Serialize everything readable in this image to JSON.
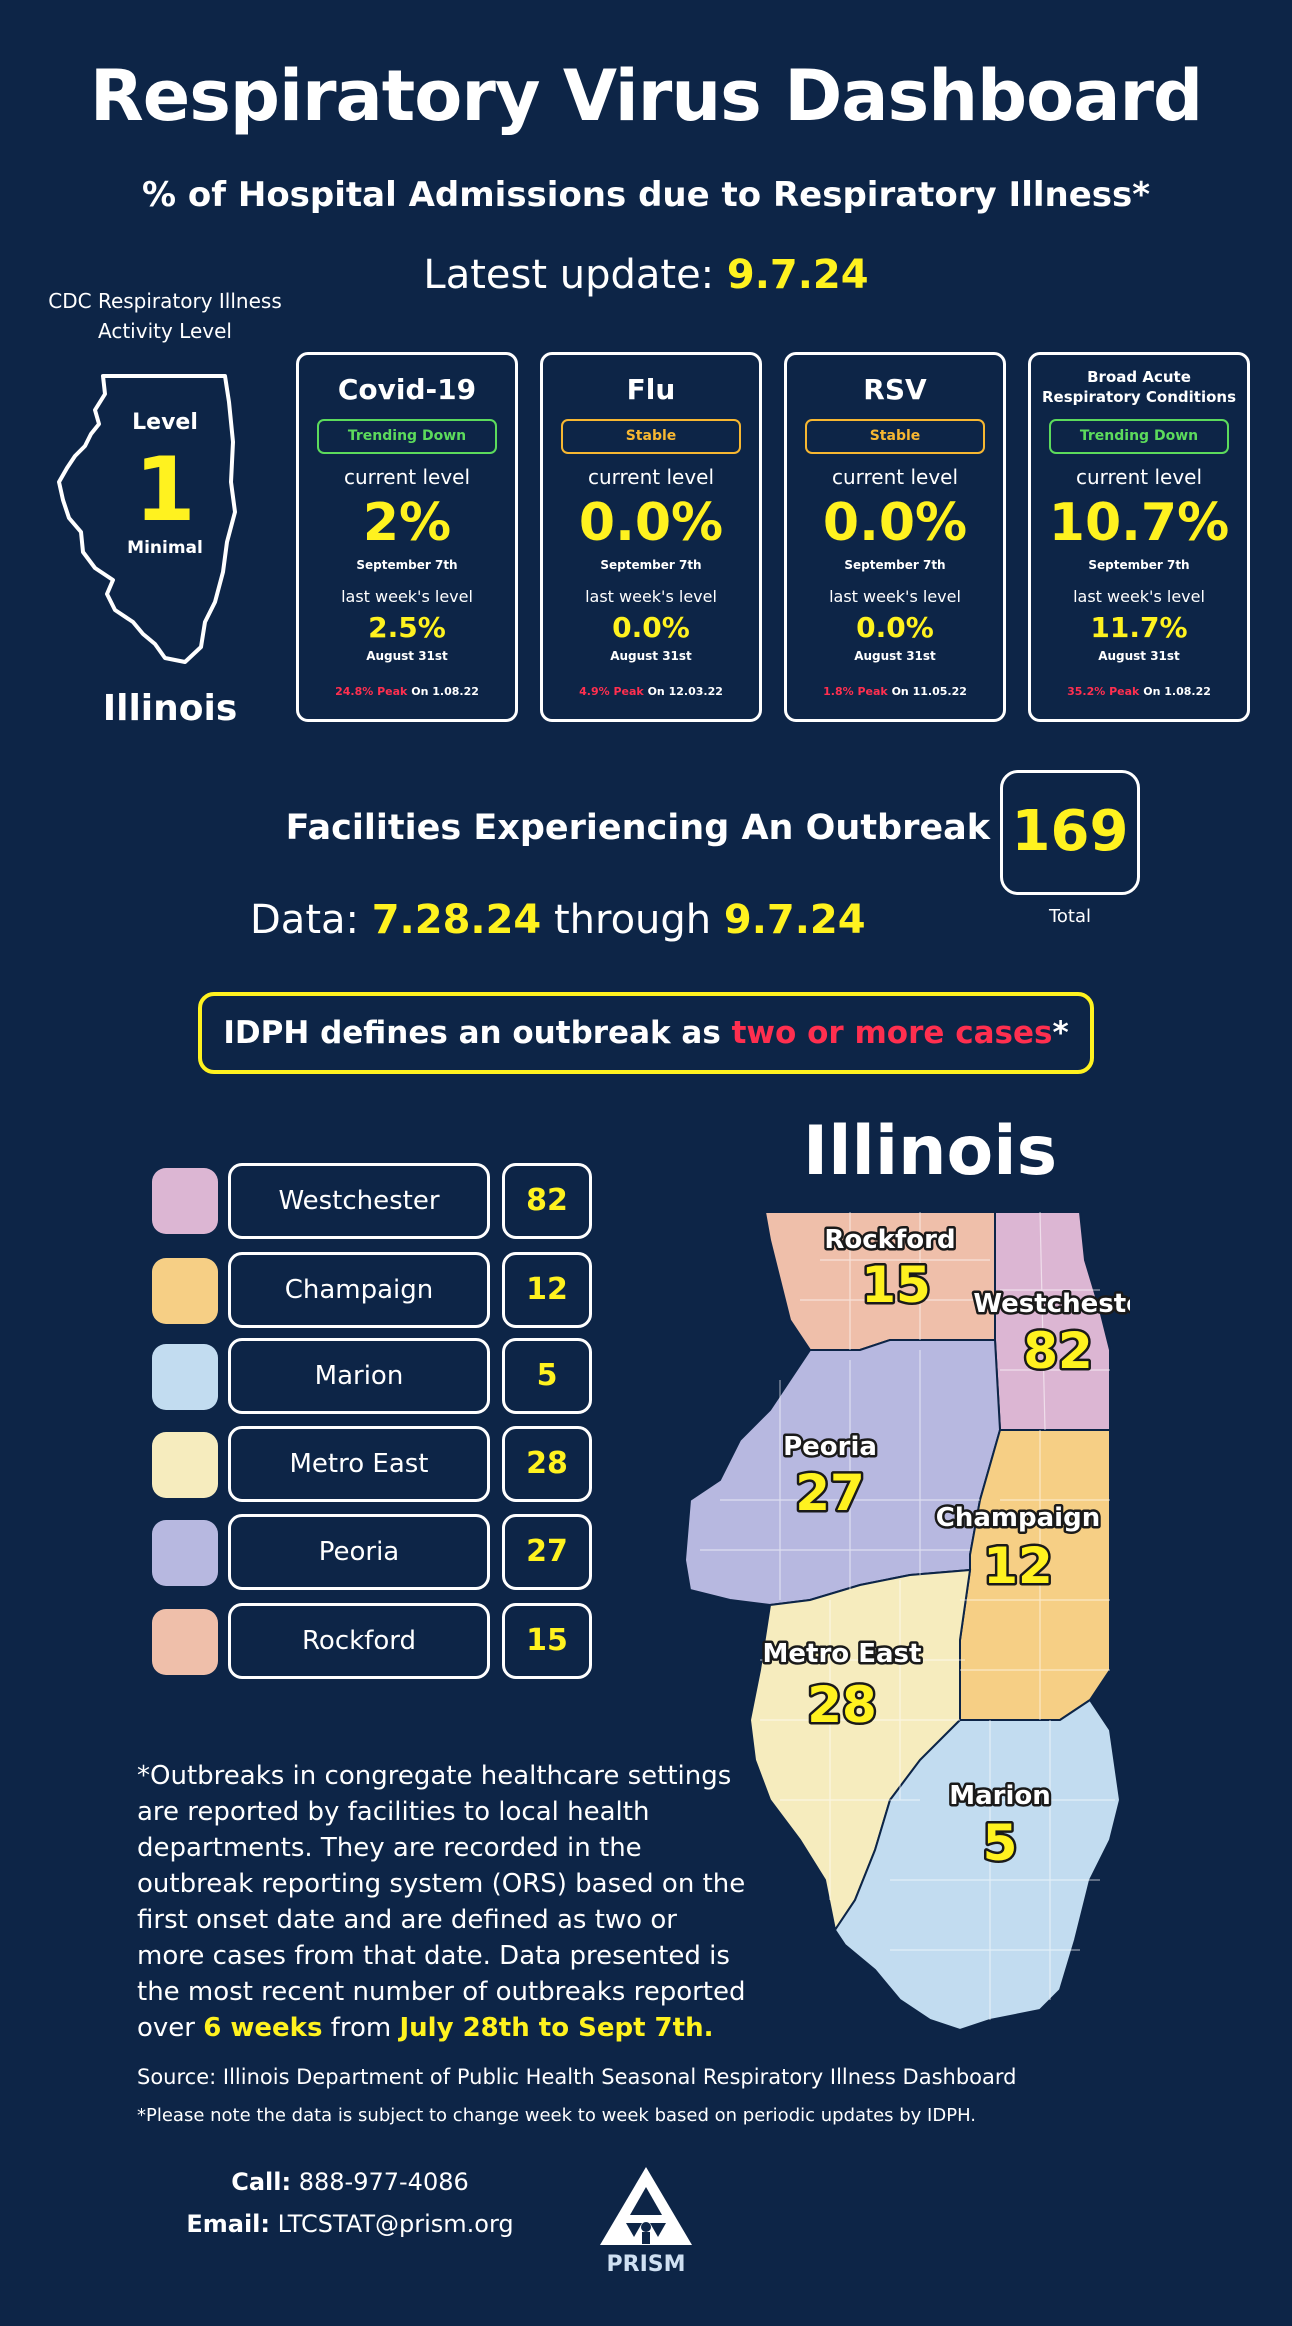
{
  "header": {
    "title": "Respiratory Virus Dashboard",
    "subtitle": "% of Hospital Admissions due to Respiratory Illness*",
    "update_label": "Latest update:",
    "update_date": "9.7.24"
  },
  "activity": {
    "label_line1": "CDC Respiratory Illness",
    "label_line2": "Activity Level",
    "level_word": "Level",
    "level_value": "1",
    "level_desc": "Minimal",
    "state": "Illinois"
  },
  "cards": [
    {
      "title": "Covid-19",
      "trend": "Trending Down",
      "current_label": "current level",
      "current": "2%",
      "current_date": "September 7th",
      "last_label": "last week's level",
      "last": "2.5%",
      "last_date": "August 31st",
      "peak": "24.8% Peak",
      "peak_on": "On 1.08.22"
    },
    {
      "title": "Flu",
      "trend": "Stable",
      "current_label": "current level",
      "current": "0.0%",
      "current_date": "September 7th",
      "last_label": "last week's level",
      "last": "0.0%",
      "last_date": "August 31st",
      "peak": "4.9% Peak",
      "peak_on": "On 12.03.22"
    },
    {
      "title": "RSV",
      "trend": "Stable",
      "current_label": "current level",
      "current": "0.0%",
      "current_date": "September 7th",
      "last_label": "last week's level",
      "last": "0.0%",
      "last_date": "August 31st",
      "peak": "1.8% Peak",
      "peak_on": "On 11.05.22"
    },
    {
      "title_line1": "Broad Acute",
      "title_line2": "Respiratory Conditions",
      "trend": "Trending Down",
      "current_label": "current level",
      "current": "10.7%",
      "current_date": "September 7th",
      "last_label": "last week's level",
      "last": "11.7%",
      "last_date": "August 31st",
      "peak": "35.2% Peak",
      "peak_on": "On 1.08.22"
    }
  ],
  "outbreak": {
    "heading": "Facilities Experiencing An Outbreak",
    "total": "169",
    "total_label": "Total",
    "data_prefix": "Data:",
    "start": "7.28.24",
    "through": "through",
    "end": "9.7.24"
  },
  "definition": {
    "prefix": "IDPH defines an outbreak as",
    "highlight": "two or more cases",
    "suffix": "*"
  },
  "map": {
    "title": "Illinois"
  },
  "regions": [
    {
      "name": "Westchester",
      "count": "82",
      "color": "#dcb6d3"
    },
    {
      "name": "Champaign",
      "count": "12",
      "color": "#f6cf85"
    },
    {
      "name": "Marion",
      "count": "5",
      "color": "#c2dcf0"
    },
    {
      "name": "Metro East",
      "count": "28",
      "color": "#f6ecbe"
    },
    {
      "name": "Peoria",
      "count": "27",
      "color": "#b7b8e0"
    },
    {
      "name": "Rockford",
      "count": "15",
      "color": "#efbfaa"
    }
  ],
  "footnote": {
    "lines": [
      "*Outbreaks in congregate healthcare settings",
      "are reported by facilities to local health",
      "departments. They are recorded in the",
      "outbreak reporting system (ORS) based on the",
      "first onset date and are defined as two or",
      "more cases from that date. Data presented is",
      "the most recent number of outbreaks reported"
    ],
    "last_prefix": "over",
    "weeks": "6 weeks",
    "last_mid": "from",
    "range": "July 28th to Sept 7th."
  },
  "source": "Source: Illinois Department of Public Health Seasonal Respiratory Illness Dashboard",
  "note": "*Please note the data is subject to change week to week based on periodic updates by IDPH.",
  "contact": {
    "call_label": "Call:",
    "call": "888-977-4086",
    "email_label": "Email:",
    "email": "LTCSTAT@prism.org"
  },
  "logo_text": "PRISM"
}
